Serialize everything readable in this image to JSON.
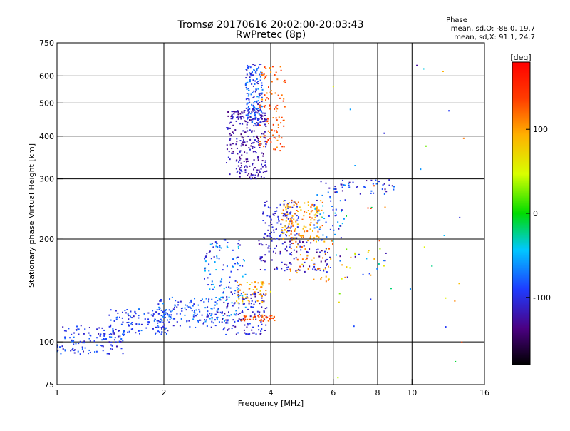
{
  "chart_data": {
    "type": "scatter",
    "title": "Tromsø 20170616 20:02:00-20:03:43",
    "subtitle": "RwPretec (8p)",
    "xlabel": "Frequency [MHz]",
    "ylabel": "Stationary phase Virtual Height [km]",
    "x_scale": "log",
    "y_scale": "log",
    "xlim": [
      1,
      16
    ],
    "ylim": [
      75,
      750
    ],
    "x_ticks": [
      1,
      2,
      4,
      6,
      8,
      10,
      16
    ],
    "x_tick_labels": [
      "1",
      "2",
      "4",
      "6",
      "8",
      "10",
      "16"
    ],
    "y_ticks": [
      75,
      100,
      200,
      300,
      400,
      500,
      600,
      750
    ],
    "y_tick_labels": [
      "75",
      "100",
      "200",
      "300",
      "400",
      "500",
      "600",
      "750"
    ],
    "grid": true,
    "stats": {
      "heading": "Phase",
      "line1": "mean, sd,O: -88.0, 19.7",
      "line2": "mean, sd,X:  91.1, 24.7"
    },
    "colorbar": {
      "label": "[deg]",
      "range": [
        -180,
        180
      ],
      "ticks": [
        100,
        0,
        -100
      ],
      "tick_labels": [
        "100",
        "0",
        "-100"
      ]
    },
    "point_clusters": [
      {
        "x": [
          1.0,
          1.55
        ],
        "y": [
          92,
          112
        ],
        "n": 130,
        "phase": [
          -120,
          -70
        ]
      },
      {
        "x": [
          1.4,
          2.1
        ],
        "y": [
          105,
          125
        ],
        "n": 110,
        "phase": [
          -115,
          -70
        ]
      },
      {
        "x": [
          1.9,
          2.9
        ],
        "y": [
          110,
          135
        ],
        "n": 130,
        "phase": [
          -110,
          -60
        ]
      },
      {
        "x": [
          2.6,
          3.4
        ],
        "y": [
          115,
          200
        ],
        "n": 140,
        "phase": [
          -120,
          -40
        ]
      },
      {
        "x": [
          2.9,
          3.9
        ],
        "y": [
          105,
          140
        ],
        "n": 130,
        "phase": [
          -130,
          -80
        ]
      },
      {
        "x": [
          3.3,
          4.2
        ],
        "y": [
          115,
          120
        ],
        "n": 40,
        "phase": [
          110,
          150
        ]
      },
      {
        "x": [
          3.2,
          4.0
        ],
        "y": [
          130,
          150
        ],
        "n": 50,
        "phase": [
          60,
          120
        ]
      },
      {
        "x": [
          3.0,
          3.9
        ],
        "y": [
          300,
          480
        ],
        "n": 260,
        "phase": [
          -140,
          -100
        ]
      },
      {
        "x": [
          3.4,
          3.8
        ],
        "y": [
          430,
          650
        ],
        "n": 170,
        "phase": [
          -120,
          -60
        ]
      },
      {
        "x": [
          3.7,
          4.4
        ],
        "y": [
          360,
          640
        ],
        "n": 100,
        "phase": [
          100,
          150
        ]
      },
      {
        "x": [
          3.8,
          4.8
        ],
        "y": [
          200,
          260
        ],
        "n": 100,
        "phase": [
          -120,
          -90
        ]
      },
      {
        "x": [
          4.3,
          5.6
        ],
        "y": [
          200,
          260
        ],
        "n": 120,
        "phase": [
          70,
          130
        ]
      },
      {
        "x": [
          3.7,
          5.9
        ],
        "y": [
          160,
          200
        ],
        "n": 110,
        "phase": [
          -140,
          -90
        ]
      },
      {
        "x": [
          4.5,
          6.0
        ],
        "y": [
          150,
          200
        ],
        "n": 50,
        "phase": [
          70,
          130
        ]
      },
      {
        "x": [
          5.3,
          6.5
        ],
        "y": [
          195,
          300
        ],
        "n": 60,
        "phase": [
          -120,
          -40
        ]
      },
      {
        "x": [
          6.0,
          9.0
        ],
        "y": [
          270,
          300
        ],
        "n": 40,
        "phase": [
          -130,
          -70
        ]
      },
      {
        "x": [
          6.2,
          8.5
        ],
        "y": [
          150,
          190
        ],
        "n": 25,
        "phase": [
          -130,
          120
        ]
      },
      {
        "x": [
          6.0,
          14.0
        ],
        "y": [
          78,
          650
        ],
        "n": 40,
        "phase": [
          -140,
          150
        ]
      }
    ]
  }
}
